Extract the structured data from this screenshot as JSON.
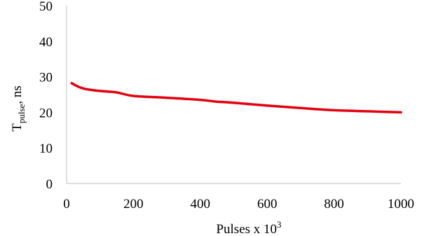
{
  "chart_data": {
    "type": "line",
    "xlabel": {
      "main": "Pulses x 10",
      "sup": "3"
    },
    "ylabel": {
      "main": "T",
      "sub": "pulse",
      "suffix": ", ns"
    },
    "xlim": [
      0,
      1000
    ],
    "ylim": [
      0,
      50
    ],
    "x_ticks": [
      0,
      200,
      400,
      600,
      800,
      1000
    ],
    "y_ticks": [
      0,
      10,
      20,
      30,
      40,
      50
    ],
    "grid": false,
    "legend": "none",
    "series": [
      {
        "color": "#e3000f",
        "x": [
          15,
          40,
          60,
          100,
          150,
          200,
          300,
          400,
          450,
          500,
          600,
          700,
          800,
          900,
          1000
        ],
        "y": [
          28.2,
          27.0,
          26.5,
          26.0,
          25.6,
          24.6,
          24.1,
          23.5,
          23.0,
          22.7,
          21.9,
          21.2,
          20.6,
          20.3,
          20.0
        ]
      }
    ]
  }
}
